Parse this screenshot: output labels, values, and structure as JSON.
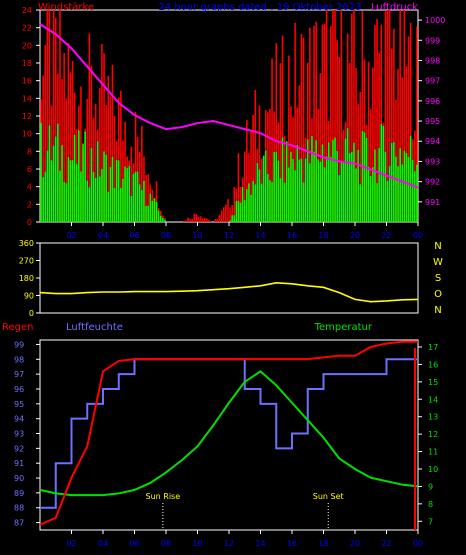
{
  "title": "24 hour graphs dated : 19 Oktober 2023",
  "colors": {
    "wind": "#ff0000",
    "gust": "#00ff00",
    "pressure": "#ff00ff",
    "direction": "#ffff00",
    "rain": "#ff0000",
    "humidity": "#7070ff",
    "temperature": "#00e000",
    "frame": "#ffffff",
    "accent": "#0000ff"
  },
  "chart_data": [
    {
      "type": "bar",
      "labels": {
        "left": "Windstärke",
        "right": "Luftdruck"
      },
      "x_ticks": [
        "02",
        "04",
        "06",
        "08",
        "10",
        "12",
        "14",
        "16",
        "18",
        "20",
        "22",
        "00"
      ],
      "y_left_ticks": [
        "0",
        "2",
        "4",
        "6",
        "8",
        "10",
        "12",
        "14",
        "16",
        "18",
        "20",
        "22",
        "24"
      ],
      "y_right_ticks": [
        "991",
        "992",
        "993",
        "994",
        "995",
        "996",
        "997",
        "998",
        "999",
        "1000"
      ],
      "ylim_left": [
        0,
        24
      ],
      "ylim_right": [
        990,
        1000.5
      ],
      "series": [
        {
          "name": "wind_speed",
          "axis": "left",
          "x": [
            0,
            1,
            2,
            3,
            4,
            5,
            6,
            7,
            8,
            9,
            10,
            11,
            12,
            13,
            14,
            15,
            16,
            17,
            18,
            19,
            20,
            21,
            22,
            23,
            24
          ],
          "values": [
            9,
            9,
            8,
            8,
            7,
            6,
            5,
            3,
            0,
            0,
            0,
            0,
            0,
            4,
            6,
            7,
            8,
            8,
            9,
            9,
            8,
            8,
            9,
            9,
            8
          ]
        },
        {
          "name": "wind_gust",
          "axis": "left",
          "x": [
            0,
            1,
            2,
            3,
            4,
            5,
            6,
            7,
            8,
            9,
            10,
            11,
            12,
            13,
            14,
            15,
            16,
            17,
            18,
            19,
            20,
            21,
            22,
            23,
            24
          ],
          "values": [
            20,
            18,
            16,
            15,
            14,
            12,
            10,
            6,
            0,
            0,
            1,
            0,
            2,
            8,
            12,
            14,
            16,
            17,
            18,
            19,
            17,
            18,
            20,
            19,
            16
          ]
        },
        {
          "name": "pressure",
          "axis": "right",
          "x": [
            0,
            1,
            2,
            3,
            4,
            5,
            6,
            7,
            8,
            9,
            10,
            11,
            12,
            13,
            14,
            15,
            16,
            17,
            18,
            19,
            20,
            21,
            22,
            23,
            24
          ],
          "values": [
            999.8,
            999.3,
            998.6,
            997.7,
            996.8,
            995.9,
            995.3,
            994.9,
            994.6,
            994.7,
            994.9,
            995.0,
            994.8,
            994.6,
            994.4,
            994.0,
            993.8,
            993.5,
            993.2,
            993.0,
            992.9,
            992.6,
            992.3,
            992.0,
            991.7
          ]
        }
      ]
    },
    {
      "type": "line",
      "labels": {
        "right": [
          "N",
          "W",
          "S",
          "O",
          "N"
        ]
      },
      "y_ticks": [
        "0",
        "90",
        "180",
        "270",
        "360"
      ],
      "ylim": [
        0,
        360
      ],
      "series": [
        {
          "name": "wind_direction",
          "x": [
            0,
            1,
            2,
            3,
            4,
            5,
            6,
            7,
            8,
            9,
            10,
            11,
            12,
            13,
            14,
            15,
            16,
            17,
            18,
            19,
            20,
            21,
            22,
            23,
            24
          ],
          "values": [
            105,
            100,
            100,
            105,
            108,
            108,
            110,
            110,
            110,
            112,
            115,
            120,
            125,
            132,
            140,
            155,
            150,
            140,
            132,
            105,
            70,
            58,
            62,
            68,
            70
          ]
        }
      ]
    },
    {
      "type": "line",
      "labels": {
        "rain": "Regen",
        "humidity": "Luftfeuchte",
        "temperature": "Temperatur",
        "sunrise": "Sun Rise",
        "sunset": "Sun Set"
      },
      "y_left_ticks": [
        "87",
        "88",
        "89",
        "90",
        "91",
        "92",
        "93",
        "94",
        "95",
        "96",
        "97",
        "98",
        "99"
      ],
      "y_right_ticks": [
        "7",
        "8",
        "9",
        "10",
        "11",
        "12",
        "13",
        "14",
        "15",
        "16",
        "17"
      ],
      "ylim_left": [
        86.5,
        99.3
      ],
      "ylim_right": [
        6.5,
        17.4
      ],
      "series": [
        {
          "name": "humidity",
          "axis": "left",
          "x": [
            0,
            1,
            2,
            3,
            4,
            5,
            6,
            7,
            8,
            9,
            10,
            11,
            12,
            13,
            14,
            15,
            16,
            17,
            18,
            19,
            20,
            21,
            22,
            23,
            24
          ],
          "values": [
            88,
            91,
            94,
            95,
            96,
            97,
            98,
            98,
            98,
            98,
            98,
            98,
            98,
            96,
            95,
            92,
            93,
            96,
            97,
            97,
            97,
            97,
            98,
            98,
            98
          ]
        },
        {
          "name": "temperature",
          "axis": "right",
          "x": [
            0,
            1,
            2,
            3,
            4,
            5,
            6,
            7,
            8,
            9,
            10,
            11,
            12,
            13,
            14,
            15,
            16,
            17,
            18,
            19,
            20,
            21,
            22,
            23,
            24
          ],
          "values": [
            8.8,
            8.6,
            8.5,
            8.5,
            8.5,
            8.6,
            8.8,
            9.2,
            9.8,
            10.5,
            11.3,
            12.5,
            13.8,
            15.0,
            15.6,
            14.8,
            13.8,
            12.8,
            11.8,
            10.6,
            10.0,
            9.5,
            9.3,
            9.1,
            9.0
          ]
        },
        {
          "name": "rain",
          "axis": "right",
          "x": [
            0,
            1,
            2,
            3,
            4,
            5,
            6,
            7,
            8,
            9,
            10,
            11,
            12,
            13,
            14,
            15,
            16,
            17,
            18,
            19,
            20,
            21,
            22,
            23,
            24
          ],
          "values": [
            6.8,
            7.2,
            9.5,
            11.3,
            15.6,
            16.2,
            16.3,
            16.3,
            16.3,
            16.3,
            16.3,
            16.3,
            16.3,
            16.3,
            16.3,
            16.3,
            16.3,
            16.3,
            16.4,
            16.5,
            16.5,
            17.0,
            17.2,
            17.3,
            17.3
          ]
        }
      ]
    }
  ]
}
